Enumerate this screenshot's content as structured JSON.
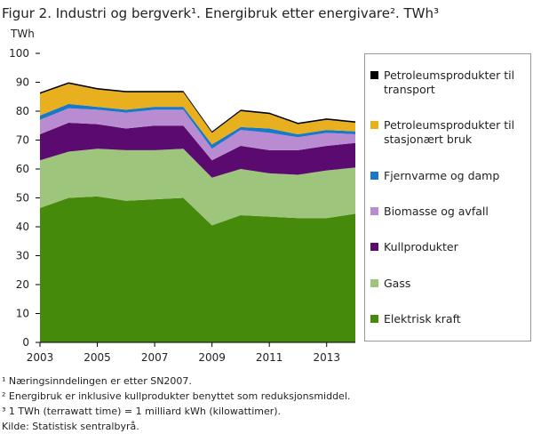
{
  "chart_data": {
    "type": "stacked_area",
    "title": "Figur 2. Industri og bergverk¹. Energibruk etter energivare². TWh³",
    "y_label": "TWh",
    "x": [
      2003,
      2004,
      2005,
      2006,
      2007,
      2008,
      2009,
      2010,
      2011,
      2012,
      2013,
      2014
    ],
    "xlim": [
      2003,
      2014
    ],
    "xticks": [
      2003,
      2005,
      2007,
      2009,
      2011,
      2013
    ],
    "ylim": [
      0,
      100
    ],
    "yticks": [
      0,
      10,
      20,
      30,
      40,
      50,
      60,
      70,
      80,
      90,
      100
    ],
    "grid": false,
    "series": [
      {
        "name": "Elektrisk kraft",
        "color": "#468a0c",
        "values": [
          46.5,
          50,
          50.5,
          49,
          49.5,
          50,
          40.5,
          44,
          43.5,
          43,
          43,
          44.5
        ]
      },
      {
        "name": "Gass",
        "color": "#9ec57c",
        "values": [
          16.5,
          16,
          16.5,
          17.5,
          17,
          17,
          16.5,
          16,
          15,
          15,
          16.5,
          16
        ]
      },
      {
        "name": "Kullprodukter",
        "color": "#5b0a70",
        "values": [
          9,
          10,
          8.5,
          7.5,
          8.5,
          8,
          6,
          8,
          8,
          8.5,
          8.5,
          8.5
        ]
      },
      {
        "name": "Biomasse og avfall",
        "color": "#b98bd0",
        "values": [
          5,
          5,
          5,
          5.5,
          5.5,
          5.5,
          4,
          5.5,
          6,
          4.5,
          4.5,
          3
        ]
      },
      {
        "name": "Fjernvarme og damp",
        "color": "#1a78c8",
        "values": [
          1.5,
          1.5,
          1,
          1,
          1,
          1,
          1.5,
          1,
          1.5,
          1,
          1,
          1
        ]
      },
      {
        "name": "Petroleumsprodukter til stasjonært bruk",
        "color": "#e8b01e",
        "values": [
          7.5,
          7,
          6,
          6,
          5,
          5,
          4,
          5.5,
          5,
          3.5,
          3.5,
          3
        ]
      },
      {
        "name": "Petroleumsprodukter til transport",
        "color": "#000000",
        "values": [
          0.5,
          0.5,
          0.5,
          0.5,
          0.5,
          0.5,
          0.5,
          0.5,
          0.5,
          0.5,
          0.5,
          0.5
        ]
      }
    ],
    "footnotes": [
      "¹ Næringsinndelingen er etter SN2007.",
      "² Energibruk er inklusive kullprodukter  benyttet som reduksjonsmiddel.",
      "³ 1 TWh (terrawatt time) = 1 milliard kWh (kilowattimer).",
      "Kilde: Statistisk sentralbyrå."
    ]
  }
}
